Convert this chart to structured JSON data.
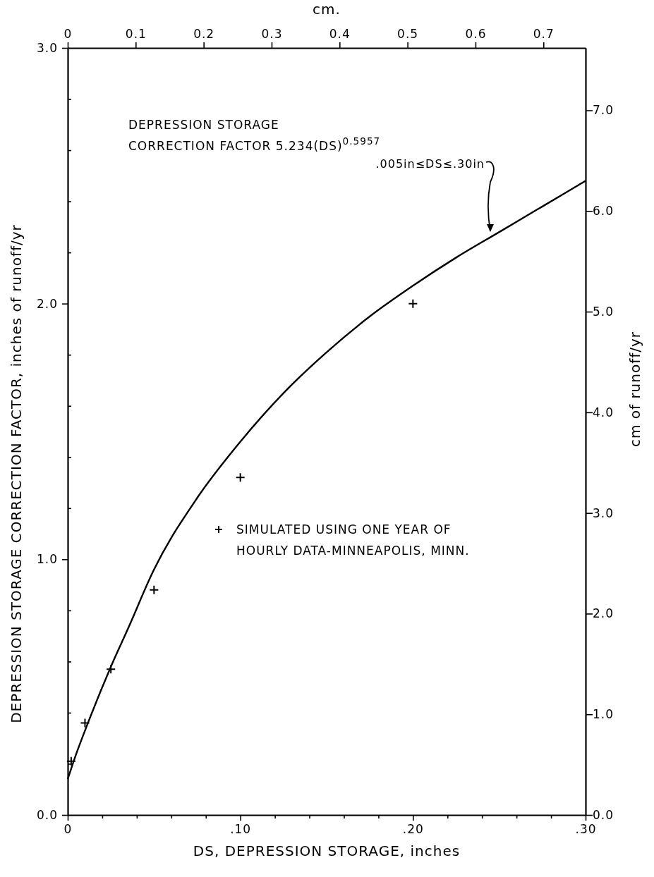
{
  "chart_data": {
    "type": "scatter",
    "xlabel": "DS, DEPRESSION STORAGE, inches",
    "ylabel": "DEPRESSION STORAGE CORRECTION FACTOR, inches of runoff/yr",
    "y2label": "cm of runoff/yr",
    "x2label": "cm.",
    "xlim": [
      0,
      0.3
    ],
    "xticks": [
      {
        "value": 0,
        "label": "0"
      },
      {
        "value": 0.02,
        "label": null
      },
      {
        "value": 0.04,
        "label": null
      },
      {
        "value": 0.06,
        "label": null
      },
      {
        "value": 0.08,
        "label": null
      },
      {
        "value": 0.1,
        "label": ".10"
      },
      {
        "value": 0.12,
        "label": null
      },
      {
        "value": 0.14,
        "label": null
      },
      {
        "value": 0.16,
        "label": null
      },
      {
        "value": 0.18,
        "label": null
      },
      {
        "value": 0.2,
        "label": ".20"
      },
      {
        "value": 0.22,
        "label": null
      },
      {
        "value": 0.24,
        "label": null
      },
      {
        "value": 0.26,
        "label": null
      },
      {
        "value": 0.28,
        "label": null
      },
      {
        "value": 0.3,
        "label": ".30"
      }
    ],
    "x2lim": [
      0,
      0.762
    ],
    "x2ticks": [
      0,
      0.1,
      0.2,
      0.3,
      0.4,
      0.5,
      0.6,
      0.7
    ],
    "ylim": [
      0,
      3
    ],
    "yticks": [
      {
        "value": 0,
        "label": "0.0"
      },
      {
        "value": 0.2,
        "label": null
      },
      {
        "value": 0.4,
        "label": null
      },
      {
        "value": 0.6,
        "label": null
      },
      {
        "value": 0.8,
        "label": null
      },
      {
        "value": 1,
        "label": "1.0"
      },
      {
        "value": 1.2,
        "label": null
      },
      {
        "value": 1.4,
        "label": null
      },
      {
        "value": 1.6,
        "label": null
      },
      {
        "value": 1.8,
        "label": null
      },
      {
        "value": 2,
        "label": "2.0"
      },
      {
        "value": 2.2,
        "label": null
      },
      {
        "value": 2.4,
        "label": null
      },
      {
        "value": 2.6,
        "label": null
      },
      {
        "value": 2.8,
        "label": null
      },
      {
        "value": 3,
        "label": "3.0"
      }
    ],
    "y2lim": [
      0,
      7.62
    ],
    "y2ticks": [
      {
        "value": 0,
        "label": "0.0"
      },
      {
        "value": 1,
        "label": "1.0"
      },
      {
        "value": 2,
        "label": "2.0"
      },
      {
        "value": 3,
        "label": "3.0"
      },
      {
        "value": 4,
        "label": "4.0"
      },
      {
        "value": 5,
        "label": "5.0"
      },
      {
        "value": 6,
        "label": "6.0"
      },
      {
        "value": 7,
        "label": "7.0"
      }
    ],
    "grid": false,
    "legend": "right",
    "series": [
      {
        "name": "SIMULATED USING ONE YEAR OF HOURLY DATA-MINNEAPOLIS, MINN.",
        "color": "#000000",
        "marker": "cross",
        "x": [
          0.002,
          0.01,
          0.025,
          0.05,
          0.1,
          0.2
        ],
        "values": [
          0.21,
          0.36,
          0.57,
          0.88,
          1.32,
          2.0
        ]
      },
      {
        "type": "line",
        "color": "#000000",
        "marker": "none",
        "line_style": "solid",
        "x": [
          0,
          0.005,
          0.01,
          0.025,
          0.035,
          0.05,
          0.075,
          0.1,
          0.125,
          0.15,
          0.175,
          0.2,
          0.225,
          0.25,
          0.275,
          0.3
        ],
        "values": [
          0.14,
          0.24,
          0.33,
          0.58,
          0.73,
          0.96,
          1.24,
          1.46,
          1.65,
          1.81,
          1.95,
          2.07,
          2.18,
          2.28,
          2.38,
          2.48
        ]
      }
    ],
    "annotations": [
      "DEPRESSION STORAGE\nCORRECTION FACTOR  5.234(DS)$^{0.5957}$",
      ".005in≤DS≤.30in"
    ]
  }
}
